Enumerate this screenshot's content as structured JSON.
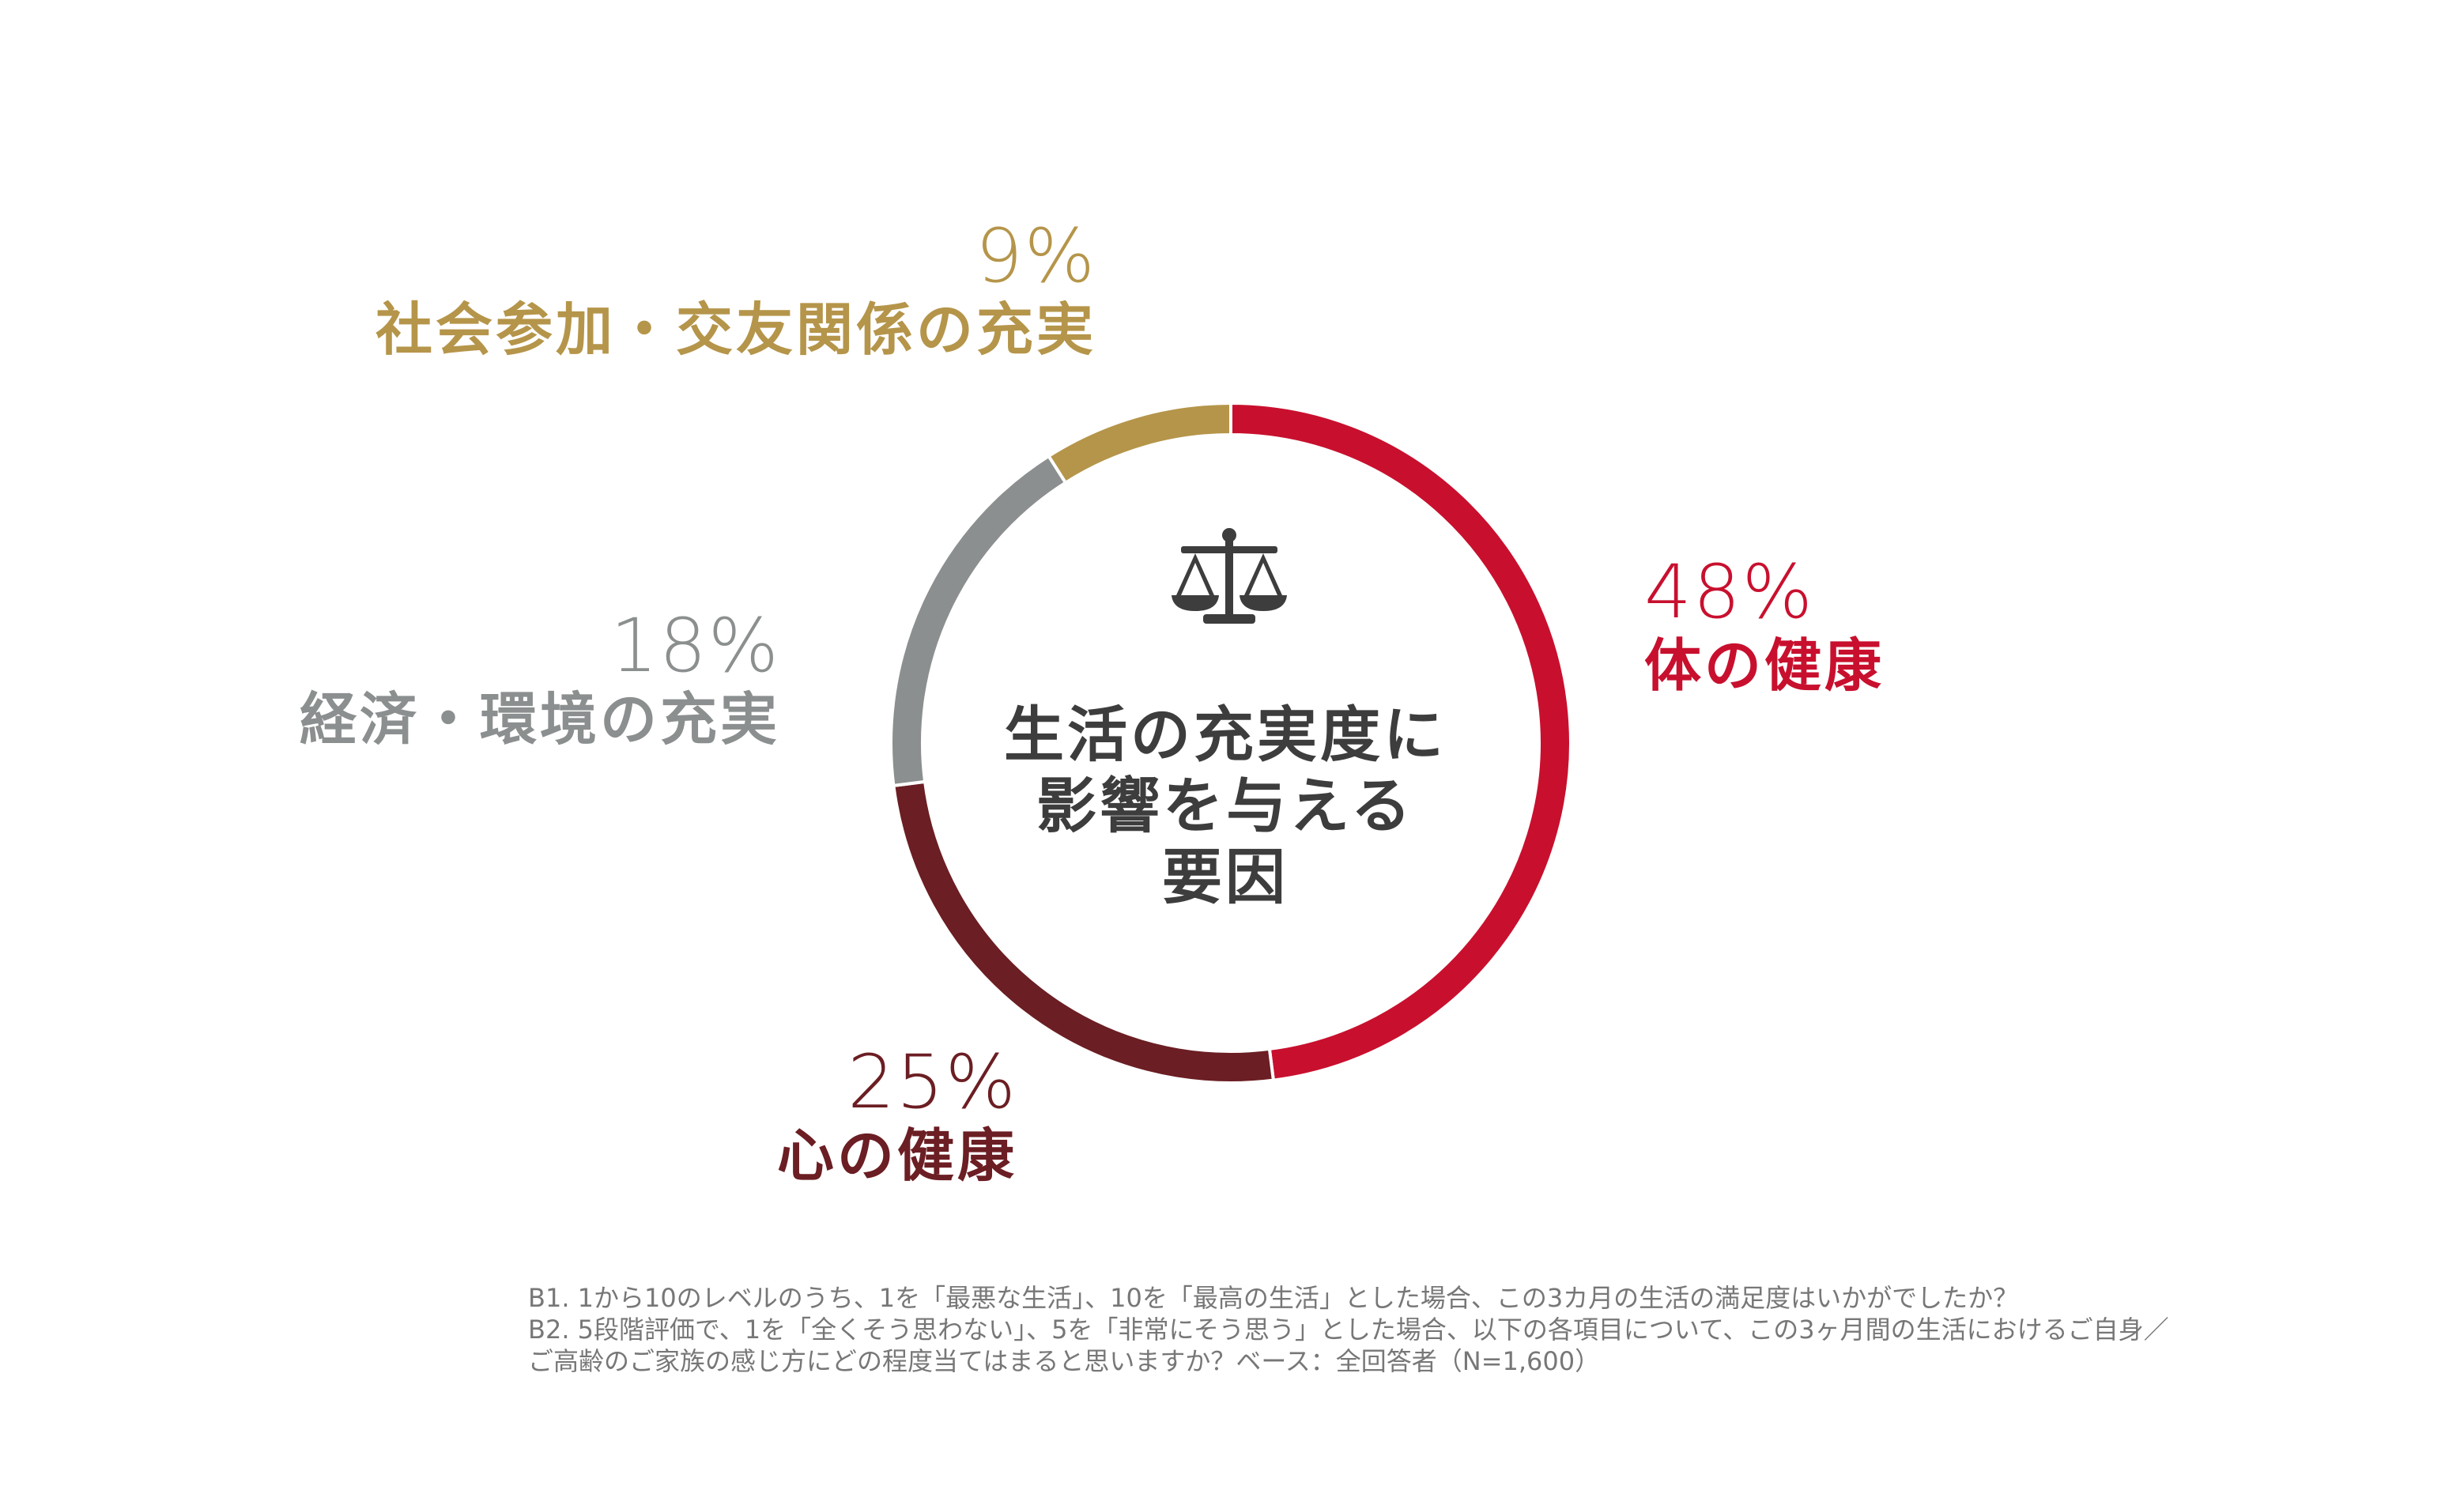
{
  "chart_data": {
    "type": "pie",
    "variant": "donut",
    "center_title": [
      "生活の充実度に",
      "影響を与える",
      "要因"
    ],
    "slices": [
      {
        "label": "体の健康",
        "value": 48,
        "value_text": "48%",
        "color": "#c8102e"
      },
      {
        "label": "心の健康",
        "value": 25,
        "value_text": "25%",
        "color": "#6b1e23"
      },
      {
        "label": "経済・環境の充実",
        "value": 18,
        "value_text": "18%",
        "color": "#8c8f8f"
      },
      {
        "label": "社会参加・交友関係の充実",
        "value": 9,
        "value_text": "9%",
        "color": "#b5954a"
      }
    ],
    "start": "12 o'clock",
    "direction": "clockwise"
  },
  "icon": "balance-scale-icon",
  "footnote": [
    "B1. 1から10のレベルのうち、1を「最悪な生活」、10を「最高の生活」とした場合、この3カ月の生活の満足度はいかがでしたか？",
    "B2. 5段階評価で、1を「全くそう思わない」、5を「非常にそう思う」とした場合、以下の各項目について、この3ヶ月間の生活におけるご自身／",
    "ご高齢のご家族の感じ方にどの程度当てはまると思いますか？ベース：全回答者（N=1,600）"
  ]
}
